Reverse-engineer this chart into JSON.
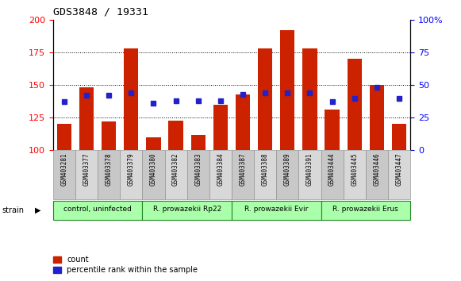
{
  "title": "GDS3848 / 19331",
  "samples": [
    "GSM403281",
    "GSM403377",
    "GSM403378",
    "GSM403379",
    "GSM403380",
    "GSM403382",
    "GSM403383",
    "GSM403384",
    "GSM403387",
    "GSM403388",
    "GSM403389",
    "GSM403391",
    "GSM403444",
    "GSM403445",
    "GSM403446",
    "GSM403447"
  ],
  "counts": [
    120,
    148,
    122,
    178,
    110,
    123,
    112,
    135,
    143,
    178,
    192,
    178,
    131,
    170,
    150,
    120
  ],
  "percentiles": [
    37,
    42,
    42,
    44,
    36,
    38,
    38,
    38,
    43,
    44,
    44,
    44,
    37,
    40,
    48,
    40
  ],
  "groups": [
    {
      "label": "control, uninfected",
      "start": 0,
      "end": 3,
      "color": "#aaffaa"
    },
    {
      "label": "R. prowazekii Rp22",
      "start": 4,
      "end": 7,
      "color": "#aaffaa"
    },
    {
      "label": "R. prowazekii Evir",
      "start": 8,
      "end": 11,
      "color": "#aaffaa"
    },
    {
      "label": "R. prowazekii Erus",
      "start": 12,
      "end": 15,
      "color": "#aaffaa"
    }
  ],
  "bar_color": "#cc2200",
  "dot_color": "#2222cc",
  "ylim_left": [
    100,
    200
  ],
  "ylim_right": [
    0,
    100
  ],
  "yticks_left": [
    100,
    125,
    150,
    175,
    200
  ],
  "yticks_right": [
    0,
    25,
    50,
    75,
    100
  ]
}
